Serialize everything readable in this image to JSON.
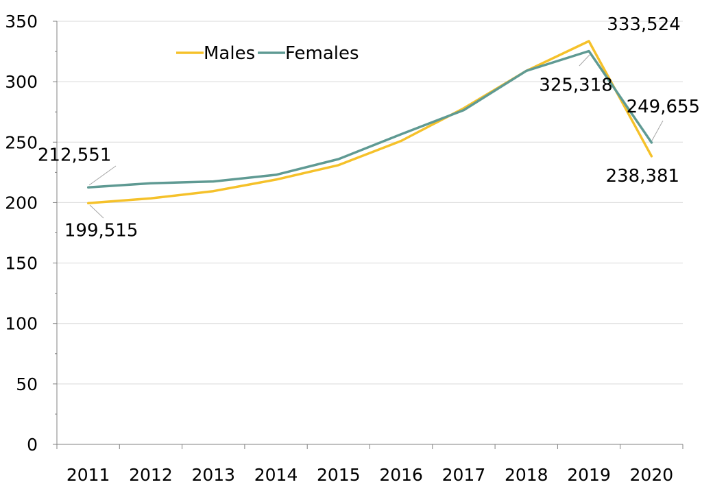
{
  "chart_data": {
    "type": "line",
    "title": "",
    "xlabel": "",
    "ylabel": "",
    "categories": [
      "2011",
      "2012",
      "2013",
      "2014",
      "2015",
      "2016",
      "2017",
      "2018",
      "2019",
      "2020"
    ],
    "ylim": [
      0,
      350
    ],
    "yticks": [
      "0",
      "50",
      "100",
      "150",
      "200",
      "250",
      "300",
      "350"
    ],
    "grid": true,
    "legend": "top-left",
    "series": [
      {
        "name": "Males",
        "color": "#f5c12a",
        "values": [
          199.515,
          203.5,
          209.5,
          219,
          231,
          251,
          278,
          309,
          333.524,
          238.381
        ]
      },
      {
        "name": "Females",
        "color": "#5f9a93",
        "values": [
          212.551,
          216,
          217.5,
          223,
          236,
          256.5,
          276.5,
          309,
          325.318,
          249.655
        ]
      }
    ],
    "annotations": [
      {
        "series": "Females",
        "category": "2011",
        "text": "212,551"
      },
      {
        "series": "Males",
        "category": "2011",
        "text": "199,515"
      },
      {
        "series": "Males",
        "category": "2019",
        "text": "333,524"
      },
      {
        "series": "Females",
        "category": "2019",
        "text": "325,318"
      },
      {
        "series": "Females",
        "category": "2020",
        "text": "249,655"
      },
      {
        "series": "Males",
        "category": "2020",
        "text": "238,381"
      }
    ]
  }
}
